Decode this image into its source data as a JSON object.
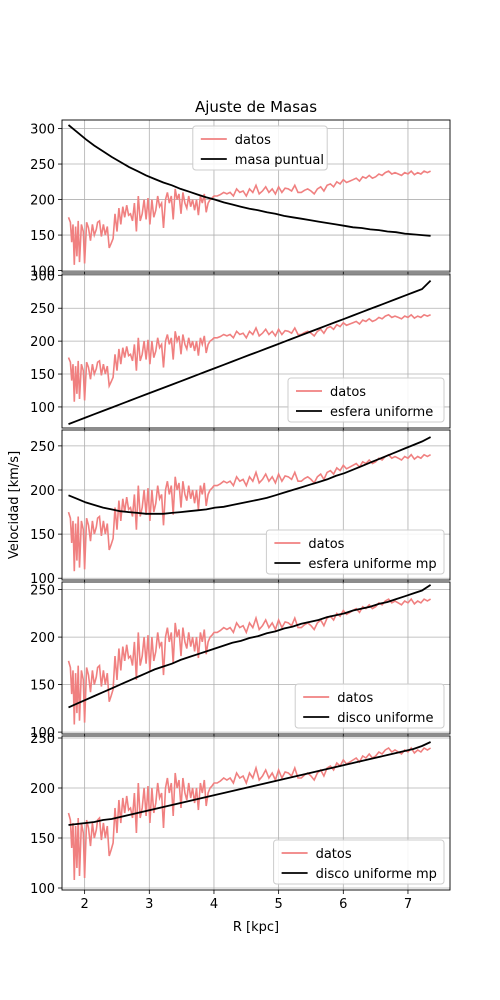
{
  "chart_data": {
    "type": "line",
    "title": "Ajuste de Masas",
    "xlabel": "R [kpc]",
    "ylabel": "Velocidad [km/s]",
    "xlim": [
      1.65,
      7.65
    ],
    "xticks": [
      2,
      3,
      4,
      5,
      6,
      7
    ],
    "grid": true,
    "colors": {
      "datos": "#f08080",
      "modelo": "#000000"
    },
    "observed": {
      "name": "datos",
      "x": [
        1.75,
        1.78,
        1.8,
        1.82,
        1.84,
        1.86,
        1.88,
        1.9,
        1.92,
        1.95,
        1.98,
        2.0,
        2.03,
        2.06,
        2.09,
        2.12,
        2.15,
        2.18,
        2.2,
        2.23,
        2.26,
        2.29,
        2.32,
        2.35,
        2.38,
        2.41,
        2.44,
        2.47,
        2.5,
        2.53,
        2.56,
        2.59,
        2.62,
        2.65,
        2.68,
        2.71,
        2.74,
        2.77,
        2.8,
        2.83,
        2.86,
        2.89,
        2.92,
        2.95,
        2.98,
        3.01,
        3.04,
        3.07,
        3.1,
        3.13,
        3.16,
        3.19,
        3.22,
        3.25,
        3.28,
        3.31,
        3.34,
        3.37,
        3.4,
        3.43,
        3.46,
        3.49,
        3.52,
        3.55,
        3.58,
        3.61,
        3.64,
        3.67,
        3.7,
        3.73,
        3.76,
        3.79,
        3.82,
        3.85,
        3.88,
        3.91,
        3.94,
        3.97,
        4.0,
        4.05,
        4.1,
        4.15,
        4.2,
        4.25,
        4.3,
        4.35,
        4.4,
        4.45,
        4.5,
        4.55,
        4.6,
        4.65,
        4.7,
        4.75,
        4.8,
        4.85,
        4.9,
        4.95,
        5.0,
        5.05,
        5.1,
        5.15,
        5.2,
        5.25,
        5.3,
        5.35,
        5.4,
        5.45,
        5.5,
        5.55,
        5.6,
        5.65,
        5.7,
        5.75,
        5.8,
        5.85,
        5.9,
        5.95,
        6.0,
        6.05,
        6.1,
        6.15,
        6.2,
        6.25,
        6.3,
        6.35,
        6.4,
        6.45,
        6.5,
        6.55,
        6.6,
        6.65,
        6.7,
        6.75,
        6.8,
        6.85,
        6.9,
        6.95,
        7.0,
        7.05,
        7.1,
        7.15,
        7.2,
        7.25,
        7.3,
        7.35
      ],
      "y": [
        175,
        168,
        140,
        165,
        108,
        162,
        120,
        170,
        112,
        165,
        155,
        110,
        168,
        160,
        142,
        165,
        150,
        158,
        168,
        170,
        148,
        165,
        150,
        162,
        132,
        138,
        145,
        180,
        155,
        188,
        165,
        190,
        175,
        192,
        178,
        180,
        170,
        195,
        155,
        205,
        170,
        180,
        200,
        172,
        202,
        165,
        200,
        175,
        185,
        205,
        190,
        195,
        160,
        200,
        210,
        195,
        205,
        172,
        215,
        200,
        208,
        180,
        210,
        195,
        188,
        205,
        190,
        200,
        185,
        200,
        178,
        205,
        195,
        208,
        182,
        195,
        200,
        202,
        205,
        205,
        207,
        210,
        208,
        210,
        205,
        215,
        210,
        212,
        205,
        215,
        210,
        220,
        208,
        212,
        218,
        210,
        215,
        208,
        218,
        210,
        216,
        215,
        212,
        220,
        210,
        210,
        213,
        215,
        212,
        208,
        215,
        218,
        212,
        220,
        222,
        218,
        225,
        222,
        228,
        224,
        226,
        228,
        230,
        226,
        232,
        230,
        234,
        230,
        232,
        236,
        234,
        238,
        240,
        236,
        238,
        236,
        234,
        238,
        236,
        240,
        235,
        238,
        236,
        240,
        238,
        240
      ]
    },
    "panels": [
      {
        "model": "masa puntual",
        "ylim": [
          98,
          312
        ],
        "yticks": [
          100,
          150,
          200,
          250,
          300
        ],
        "legend": "top-center",
        "y_model": [
          305,
          295,
          285,
          276,
          268,
          260,
          253,
          246,
          240,
          234,
          229,
          224,
          220,
          215,
          211,
          207,
          203,
          200,
          196,
          193,
          190,
          187,
          185,
          182,
          180,
          177,
          175,
          173,
          171,
          169,
          167,
          165,
          163,
          161,
          160,
          158,
          157,
          155,
          154,
          152,
          151,
          150,
          149
        ]
      },
      {
        "model": "esfera uniforme",
        "ylim": [
          68,
          302
        ],
        "yticks": [
          100,
          150,
          200,
          250,
          300
        ],
        "legend": "lower-right",
        "y_model": [
          74,
          79,
          84,
          89,
          94,
          99,
          104,
          109,
          114,
          119,
          124,
          129,
          134,
          139,
          144,
          149,
          154,
          159,
          164,
          169,
          174,
          179,
          184,
          189,
          194,
          199,
          204,
          209,
          214,
          219,
          224,
          229,
          234,
          239,
          244,
          249,
          254,
          259,
          264,
          269,
          274,
          279,
          292
        ]
      },
      {
        "model": "esfera uniforme mp",
        "ylim": [
          98,
          268
        ],
        "yticks": [
          100,
          150,
          200,
          250
        ],
        "legend": "lower-right",
        "y_model": [
          194,
          190,
          186,
          183,
          180,
          178,
          176,
          175,
          174,
          173,
          173,
          173,
          174,
          175,
          176,
          177,
          178,
          180,
          181,
          183,
          185,
          187,
          189,
          191,
          194,
          197,
          200,
          203,
          206,
          209,
          212,
          216,
          219,
          223,
          227,
          231,
          235,
          239,
          243,
          247,
          251,
          255,
          260
        ]
      },
      {
        "model": "disco uniforme",
        "ylim": [
          98,
          258
        ],
        "yticks": [
          100,
          150,
          200,
          250
        ],
        "legend": "lower-right",
        "y_model": [
          126,
          130,
          134,
          138,
          142,
          146,
          150,
          154,
          158,
          162,
          166,
          169,
          172,
          176,
          179,
          182,
          185,
          188,
          191,
          194,
          196,
          199,
          201,
          204,
          206,
          209,
          211,
          214,
          216,
          218,
          221,
          223,
          225,
          228,
          230,
          232,
          235,
          237,
          240,
          243,
          246,
          249,
          255
        ]
      },
      {
        "model": "disco uniforme mp",
        "ylim": [
          98,
          252
        ],
        "yticks": [
          100,
          150,
          200,
          250
        ],
        "legend": "lower-right",
        "y_model": [
          163,
          164,
          165,
          166,
          168,
          169,
          171,
          173,
          175,
          177,
          179,
          181,
          183,
          185,
          187,
          189,
          191,
          193,
          195,
          197,
          199,
          201,
          203,
          205,
          207,
          209,
          211,
          213,
          215,
          217,
          219,
          221,
          223,
          225,
          227,
          229,
          231,
          233,
          235,
          237,
          239,
          242,
          246
        ]
      }
    ]
  }
}
